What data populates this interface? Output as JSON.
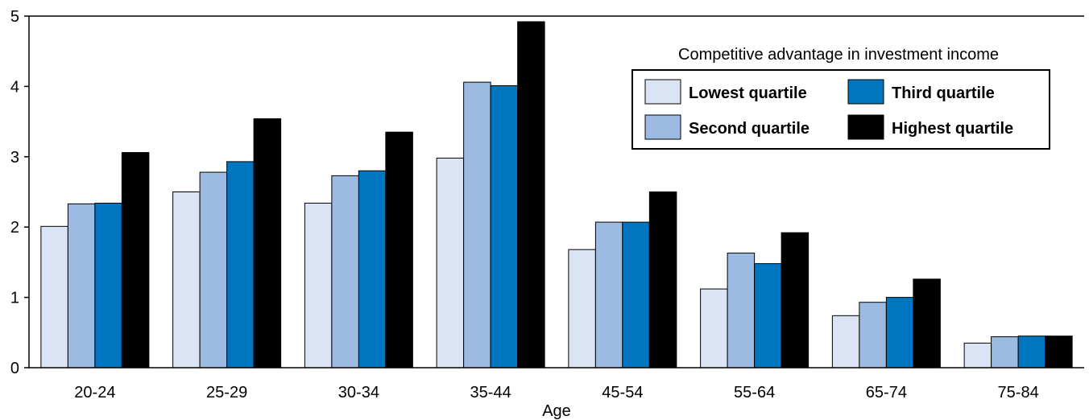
{
  "chart_data": {
    "type": "bar",
    "xlabel": "Age",
    "ylabel": "",
    "ylim": [
      0,
      5
    ],
    "yticks": [
      0,
      1,
      2,
      3,
      4,
      5
    ],
    "grid": false,
    "legend_placement": "top-right",
    "legend_title": "Competitive advantage in investment income",
    "categories": [
      "20-24",
      "25-29",
      "30-34",
      "35-44",
      "45-54",
      "55-64",
      "65-74",
      "75-84"
    ],
    "series": [
      {
        "name": "Lowest quartile",
        "color": "#dbe4f4",
        "values": [
          2.01,
          2.5,
          2.34,
          2.98,
          1.68,
          1.12,
          0.74,
          0.35
        ]
      },
      {
        "name": "Second quartile",
        "color": "#9dbbe2",
        "values": [
          2.33,
          2.78,
          2.73,
          4.06,
          2.07,
          1.63,
          0.93,
          0.44
        ]
      },
      {
        "name": "Third quartile",
        "color": "#0076c0",
        "values": [
          2.34,
          2.93,
          2.8,
          4.01,
          2.07,
          1.48,
          1.0,
          0.45
        ]
      },
      {
        "name": "Highest quartile",
        "color": "#000000",
        "values": [
          3.06,
          3.54,
          3.35,
          4.92,
          2.5,
          1.92,
          1.26,
          0.45
        ]
      }
    ]
  }
}
